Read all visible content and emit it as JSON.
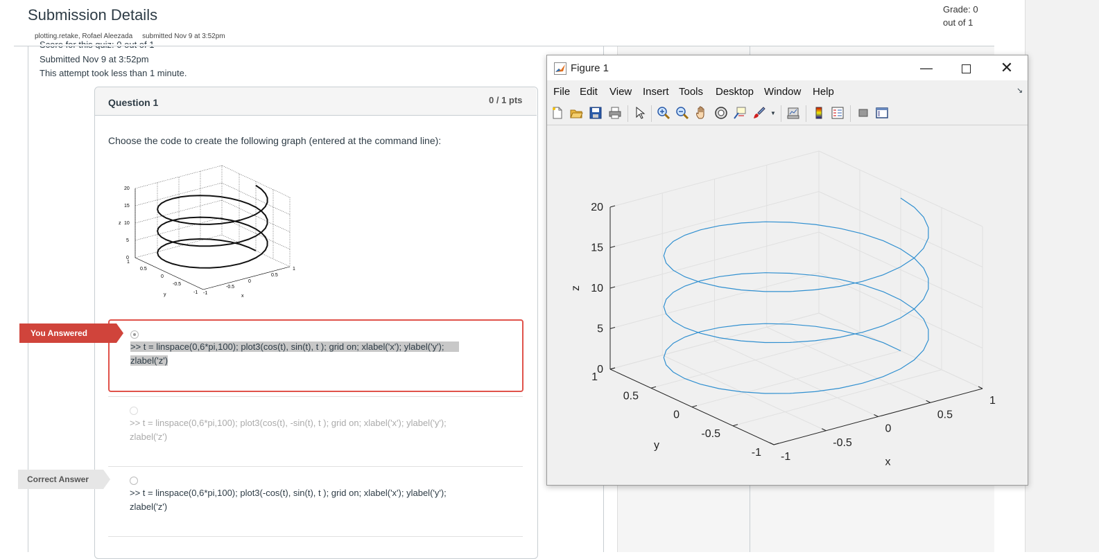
{
  "page": {
    "title": "Submission Details",
    "subtitle": "plotting.retake, Rofael Aleezada     submitted Nov 9 at 3:52pm",
    "grade_line1": "Grade: 0",
    "grade_line2": "out of 1",
    "score_text": "Score for this quiz: 0 out of 1",
    "submitted_text": "Submitted Nov 9 at 3:52pm",
    "attempt_text": "This attempt took less than 1 minute."
  },
  "question": {
    "title": "Question 1",
    "pts": "0 / 1 pts",
    "text": "Choose the code to create the following graph (entered at the command line):",
    "answers": [
      {
        "line1": ">> t = linspace(0,6*pi,100); plot3(cos(t), sin(t), t ); grid on; xlabel('x'); ylabel('y');",
        "line2": "zlabel('z')"
      },
      {
        "line1": ">> t = linspace(0,6*pi,100); plot3(cos(t), -sin(t), t ); grid on; xlabel('x'); ylabel('y');",
        "line2": "zlabel('z')"
      },
      {
        "line1": ">> t = linspace(0,6*pi,100); plot3(-cos(t), sin(t), t ); grid on; xlabel('x'); ylabel('y');",
        "line2": "zlabel('z')"
      }
    ],
    "badge_you": "You Answered",
    "badge_correct": "Correct Answer"
  },
  "thumbnail": {
    "z_ticks": [
      "0",
      "5",
      "10",
      "15",
      "20"
    ],
    "y_ticks": [
      "1",
      "0.5",
      "0",
      "-0.5",
      "-1"
    ],
    "x_ticks": [
      "-1",
      "-0.5",
      "0",
      "0.5",
      "1"
    ],
    "xlabel": "x",
    "ylabel": "y",
    "zlabel": "z"
  },
  "figure": {
    "title": "Figure 1",
    "menu": [
      "File",
      "Edit",
      "View",
      "Insert",
      "Tools",
      "Desktop",
      "Window",
      "Help"
    ],
    "toolbar_icons": [
      "new-figure-icon",
      "open-file-icon",
      "save-icon",
      "print-icon",
      "pointer-icon",
      "zoom-in-icon",
      "zoom-out-icon",
      "pan-icon",
      "rotate-3d-icon",
      "data-cursor-icon",
      "brush-icon",
      "link-plot-icon",
      "colorbar-icon",
      "legend-icon",
      "hide-plot-tools-icon",
      "show-plot-tools-icon"
    ],
    "line_color": "#2f8fd0"
  },
  "chart_data": {
    "type": "line",
    "subtype": "3d-helix",
    "x_expr": "cos(t)",
    "y_expr": "sin(t)",
    "z_expr": "t",
    "t_range": [
      0,
      18.85
    ],
    "points": 100,
    "xlabel": "x",
    "ylabel": "y",
    "zlabel": "z",
    "xlim": [
      -1,
      1
    ],
    "ylim": [
      -1,
      1
    ],
    "zlim": [
      0,
      20
    ],
    "x_ticks": [
      "-1",
      "-0.5",
      "0",
      "0.5",
      "1"
    ],
    "y_ticks": [
      "-1",
      "-0.5",
      "0",
      "0.5",
      "1"
    ],
    "z_ticks": [
      "0",
      "5",
      "10",
      "15",
      "20"
    ],
    "grid": true
  }
}
